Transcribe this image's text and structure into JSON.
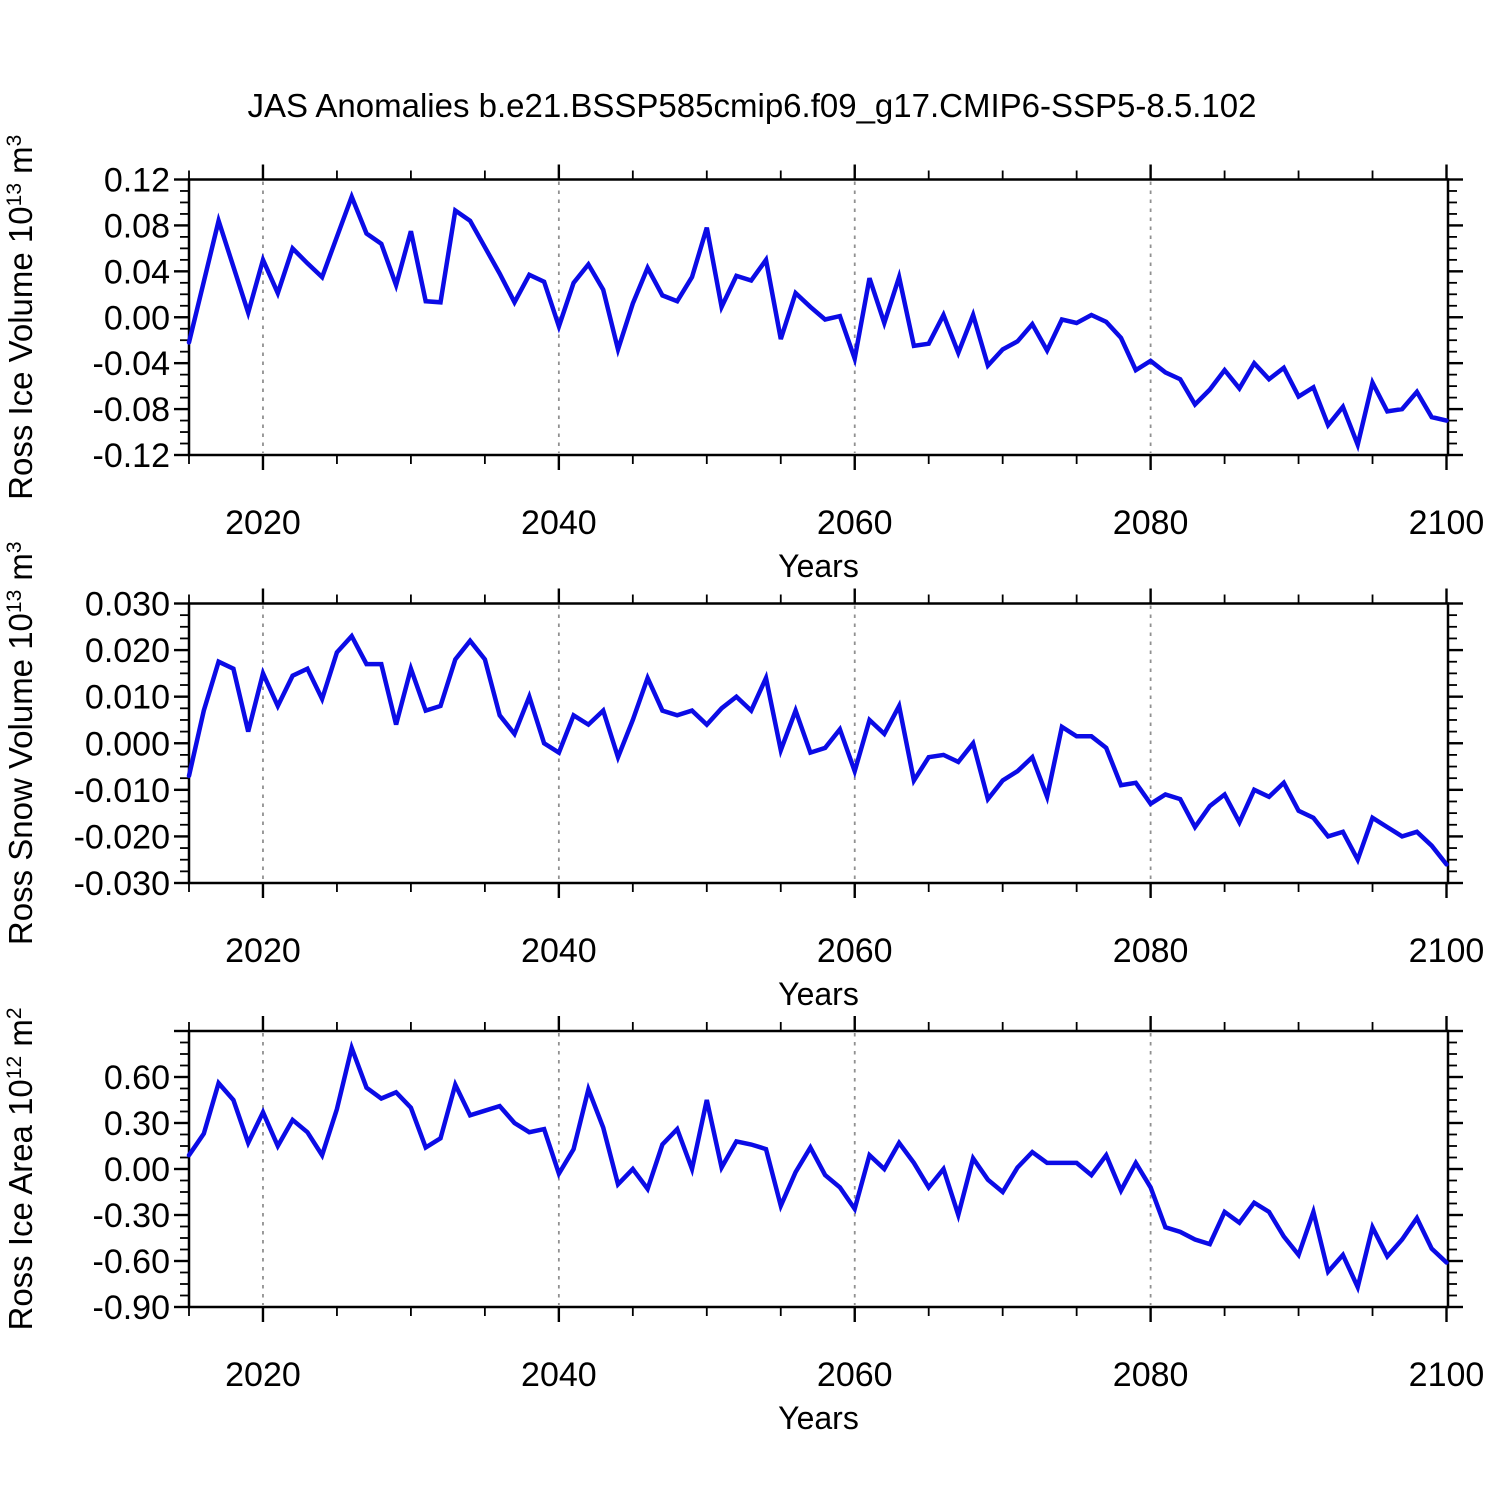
{
  "chart_data": {
    "type": "line",
    "title": "JAS Anomalies b.e21.BSSP585cmip6.f09_g17.CMIP6-SSP5-8.5.102",
    "line_color": "#0b0be6",
    "grid_color": "#909090",
    "frame_color": "#000000",
    "x": {
      "label": "Years",
      "start_year": 2015,
      "end_year": 2100,
      "step": 1,
      "major_ticks": [
        2020,
        2040,
        2060,
        2080,
        2100
      ],
      "major_tick_labels": [
        "2020",
        "2040",
        "2060",
        "2080",
        "2100"
      ],
      "minor_tick_step": 5,
      "gridline_years": [
        2020,
        2040,
        2060,
        2080
      ]
    },
    "panels": [
      {
        "id": "ross-ice-volume",
        "series_name": "Ross Ice Volume",
        "unit": "10^13 m^3",
        "ylabel_parts": [
          {
            "t": "Ross Ice Volume 10"
          },
          {
            "t": "13",
            "sup": true
          },
          {
            "t": " m"
          },
          {
            "t": "3",
            "sup": true
          }
        ],
        "ylim": [
          -0.12,
          0.12
        ],
        "ymajor_step": 0.04,
        "yminor_step": 0.01,
        "ytick_values": [
          0.12,
          0.08,
          0.04,
          0.0,
          -0.04,
          -0.08,
          -0.12
        ],
        "ytick_labels": [
          "0.12",
          "0.08",
          "0.04",
          "0.00",
          "-0.04",
          "-0.08",
          "-0.12"
        ],
        "values": [
          -0.022,
          0.031,
          0.084,
          0.044,
          0.004,
          0.05,
          0.021,
          0.06,
          0.047,
          0.035,
          0.07,
          0.105,
          0.073,
          0.064,
          0.028,
          0.075,
          0.014,
          0.013,
          0.093,
          0.084,
          0.061,
          0.038,
          0.013,
          0.037,
          0.031,
          -0.008,
          0.03,
          0.046,
          0.024,
          -0.028,
          0.012,
          0.043,
          0.019,
          0.014,
          0.035,
          0.078,
          0.009,
          0.036,
          0.032,
          0.05,
          -0.019,
          0.021,
          0.009,
          -0.002,
          0.001,
          -0.036,
          0.034,
          -0.005,
          0.035,
          -0.025,
          -0.023,
          0.002,
          -0.031,
          0.002,
          -0.042,
          -0.028,
          -0.021,
          -0.006,
          -0.029,
          -0.002,
          -0.005,
          0.002,
          -0.004,
          -0.018,
          -0.046,
          -0.038,
          -0.048,
          -0.054,
          -0.076,
          -0.063,
          -0.046,
          -0.062,
          -0.04,
          -0.054,
          -0.044,
          -0.069,
          -0.061,
          -0.094,
          -0.078,
          -0.111,
          -0.057,
          -0.082,
          -0.08,
          -0.065,
          -0.087,
          -0.09
        ]
      },
      {
        "id": "ross-snow-volume",
        "series_name": "Ross Snow Volume",
        "unit": "10^13 m^3",
        "ylabel_parts": [
          {
            "t": "Ross Snow Volume 10"
          },
          {
            "t": "13",
            "sup": true
          },
          {
            "t": " m"
          },
          {
            "t": "3",
            "sup": true
          }
        ],
        "ylim": [
          -0.03,
          0.03
        ],
        "ymajor_step": 0.01,
        "yminor_step": 0.0025,
        "ytick_values": [
          0.03,
          0.02,
          0.01,
          0.0,
          -0.01,
          -0.02,
          -0.03
        ],
        "ytick_labels": [
          "0.030",
          "0.020",
          "0.010",
          "0.000",
          "-0.010",
          "-0.020",
          "-0.030"
        ],
        "values": [
          -0.007,
          0.007,
          0.0175,
          0.016,
          0.0025,
          0.015,
          0.008,
          0.0145,
          0.016,
          0.0095,
          0.0195,
          0.023,
          0.017,
          0.017,
          0.004,
          0.016,
          0.007,
          0.008,
          0.018,
          0.022,
          0.018,
          0.006,
          0.002,
          0.01,
          0.0,
          -0.002,
          0.006,
          0.004,
          0.007,
          -0.003,
          0.005,
          0.014,
          0.007,
          0.006,
          0.007,
          0.004,
          0.0075,
          0.01,
          0.007,
          0.014,
          -0.0015,
          0.007,
          -0.002,
          -0.001,
          0.003,
          -0.006,
          0.005,
          0.002,
          0.008,
          -0.008,
          -0.003,
          -0.0025,
          -0.004,
          0.0,
          -0.012,
          -0.008,
          -0.006,
          -0.003,
          -0.0115,
          0.0035,
          0.0015,
          0.0015,
          -0.001,
          -0.009,
          -0.0085,
          -0.013,
          -0.011,
          -0.012,
          -0.018,
          -0.0135,
          -0.011,
          -0.017,
          -0.01,
          -0.0115,
          -0.0085,
          -0.0145,
          -0.016,
          -0.02,
          -0.019,
          -0.025,
          -0.016,
          -0.018,
          -0.02,
          -0.019,
          -0.022,
          -0.026
        ]
      },
      {
        "id": "ross-ice-area",
        "series_name": "Ross Ice Area",
        "unit": "10^12 m^2",
        "ylabel_parts": [
          {
            "t": "Ross Ice Area 10"
          },
          {
            "t": "12",
            "sup": true
          },
          {
            "t": " m"
          },
          {
            "t": "2",
            "sup": true
          }
        ],
        "ylim": [
          -0.9,
          0.9
        ],
        "ymajor_step": 0.3,
        "yminor_step": 0.075,
        "ytick_values": [
          0.6,
          0.3,
          0.0,
          -0.3,
          -0.6,
          -0.9
        ],
        "ytick_labels": [
          "0.60",
          "0.30",
          "0.00",
          "-0.30",
          "-0.60",
          "-0.90"
        ],
        "values": [
          0.09,
          0.23,
          0.56,
          0.45,
          0.17,
          0.37,
          0.15,
          0.32,
          0.24,
          0.09,
          0.39,
          0.79,
          0.53,
          0.46,
          0.5,
          0.4,
          0.14,
          0.2,
          0.55,
          0.35,
          0.38,
          0.41,
          0.3,
          0.24,
          0.26,
          -0.03,
          0.13,
          0.52,
          0.27,
          -0.1,
          0.0,
          -0.13,
          0.16,
          0.26,
          0.0,
          0.45,
          0.01,
          0.18,
          0.16,
          0.13,
          -0.24,
          -0.02,
          0.14,
          -0.04,
          -0.12,
          -0.26,
          0.09,
          0.0,
          0.17,
          0.04,
          -0.12,
          0.0,
          -0.3,
          0.07,
          -0.07,
          -0.15,
          0.01,
          0.11,
          0.04,
          0.04,
          0.04,
          -0.04,
          0.09,
          -0.14,
          0.04,
          -0.12,
          -0.38,
          -0.41,
          -0.46,
          -0.49,
          -0.28,
          -0.35,
          -0.22,
          -0.28,
          -0.44,
          -0.56,
          -0.28,
          -0.67,
          -0.56,
          -0.77,
          -0.38,
          -0.57,
          -0.46,
          -0.32,
          -0.52,
          -0.61
        ]
      }
    ]
  }
}
